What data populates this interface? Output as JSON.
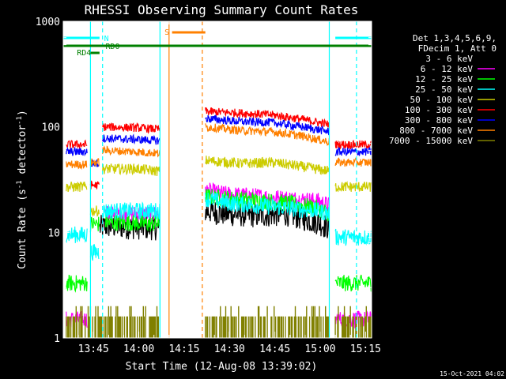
{
  "chart_data": {
    "type": "line",
    "title": "RHESSI Observing Summary Count Rates",
    "xlabel": "Start Time (12-Aug-08 13:39:02)",
    "ylabel_main": "Count Rate (s",
    "ylabel_sup1": "-1",
    "ylabel_mid": " detector",
    "ylabel_sup2": "-1",
    "ylabel_end": ")",
    "timestamp": "15-Oct-2021 04:02",
    "x_range_min": [
      -4,
      98
    ],
    "y_scale": "log",
    "y_range": [
      1,
      1000
    ],
    "x_ticks": [
      {
        "t": 6,
        "label": "13:45"
      },
      {
        "t": 21,
        "label": "14:00"
      },
      {
        "t": 36,
        "label": "14:15"
      },
      {
        "t": 51,
        "label": "14:30"
      },
      {
        "t": 66,
        "label": "14:45"
      },
      {
        "t": 81,
        "label": "15:00"
      },
      {
        "t": 96,
        "label": "15:15"
      }
    ],
    "y_ticks": [
      {
        "v": 1,
        "label": "1"
      },
      {
        "v": 10,
        "label": "10"
      },
      {
        "v": 100,
        "label": "100"
      },
      {
        "v": 1000,
        "label": "1000"
      }
    ],
    "legend": {
      "header1": "Det 1,3,4,5,6,9,",
      "header2": "FDecim 1, Att 0",
      "entries": [
        {
          "label": "3 - 6 keV",
          "color": "#000000"
        },
        {
          "label": "6 - 12 keV",
          "color": "#ff00ff"
        },
        {
          "label": "12 - 25 keV",
          "color": "#00ff00"
        },
        {
          "label": "25 - 50 keV",
          "color": "#00ffff"
        },
        {
          "label": "50 - 100 keV",
          "color": "#cccc00"
        },
        {
          "label": "100 - 300 keV",
          "color": "#ff0000"
        },
        {
          "label": "300 - 800 keV",
          "color": "#0000ff"
        },
        {
          "label": "800 - 7000 keV",
          "color": "#ff8000"
        },
        {
          "label": "7000 - 15000 keV",
          "color": "#808000"
        }
      ]
    },
    "flags": [
      {
        "label": "N",
        "color": "#00ffff",
        "segments": [
          [
            -4,
            8
          ],
          [
            86,
            98
          ]
        ]
      },
      {
        "label": "S",
        "color": "#ff8000",
        "segments": [
          [
            32,
            43
          ]
        ]
      },
      {
        "label": "RD0",
        "color": "#008000",
        "segments": [
          [
            -4,
            98
          ]
        ]
      },
      {
        "label": "RD4",
        "color": "#008000",
        "segments": [
          [
            5,
            8
          ]
        ]
      }
    ],
    "vlines": [
      {
        "t": 5,
        "color": "#00ffff",
        "style": "solid"
      },
      {
        "t": 9,
        "color": "#00ffff",
        "style": "dashed"
      },
      {
        "t": 28,
        "color": "#00ffff",
        "style": "solid"
      },
      {
        "t": 31,
        "color": "#ff8000",
        "style": "solid"
      },
      {
        "t": 42,
        "color": "#ff8000",
        "style": "dashed"
      },
      {
        "t": 84,
        "color": "#00ffff",
        "style": "solid"
      },
      {
        "t": 93,
        "color": "#00ffff",
        "style": "dashed"
      }
    ],
    "series": [
      {
        "name": "3 - 6 keV",
        "color": "#000000",
        "noise": 0.12,
        "segments": [
          {
            "x": [
              -3,
              4,
              6,
              8,
              10,
              28
            ],
            "y": [
              null,
              null,
              null,
              11,
              11.5,
              11
            ]
          },
          {
            "x": [
              43,
              50,
              60,
              70,
              80,
              84
            ],
            "y": [
              16,
              15,
              14.5,
              15,
              12.5,
              11
            ]
          }
        ]
      },
      {
        "name": "6 - 12 keV",
        "color": "#ff00ff",
        "noise": 0.08,
        "segments": [
          {
            "x": [
              -3,
              4
            ],
            "y": [
              1.5,
              1.5
            ]
          },
          {
            "x": [
              10,
              28
            ],
            "y": [
              15,
              15
            ]
          },
          {
            "x": [
              43,
              50,
              60,
              70,
              80,
              84
            ],
            "y": [
              25,
              23,
              22,
              21,
              20,
              18
            ]
          },
          {
            "x": [
              86,
              98
            ],
            "y": [
              1.5,
              1.5
            ]
          }
        ]
      },
      {
        "name": "12 - 25 keV",
        "color": "#00ff00",
        "noise": 0.08,
        "segments": [
          {
            "x": [
              -3,
              4
            ],
            "y": [
              3.3,
              3.3
            ]
          },
          {
            "x": [
              5,
              8
            ],
            "y": [
              12,
              12
            ]
          },
          {
            "x": [
              10,
              28
            ],
            "y": [
              12.5,
              12
            ]
          },
          {
            "x": [
              43,
              50,
              60,
              70,
              80,
              84
            ],
            "y": [
              22,
              21,
              20,
              19,
              17,
              15
            ]
          },
          {
            "x": [
              86,
              98
            ],
            "y": [
              3.3,
              3.3
            ]
          }
        ]
      },
      {
        "name": "25 - 50 keV",
        "color": "#00ffff",
        "noise": 0.08,
        "segments": [
          {
            "x": [
              -3,
              3,
              4
            ],
            "y": [
              9.5,
              9.5,
              9.5
            ]
          },
          {
            "x": [
              5,
              8
            ],
            "y": [
              6.5,
              6.5
            ]
          },
          {
            "x": [
              9,
              28
            ],
            "y": [
              16,
              16
            ]
          },
          {
            "x": [
              43,
              50,
              60,
              70,
              80,
              84
            ],
            "y": [
              21,
              19,
              18,
              17,
              16,
              15
            ]
          },
          {
            "x": [
              86,
              98
            ],
            "y": [
              9,
              9
            ]
          }
        ]
      },
      {
        "name": "50 - 100 keV",
        "color": "#cccc00",
        "noise": 0.05,
        "segments": [
          {
            "x": [
              -3,
              4
            ],
            "y": [
              27,
              27
            ]
          },
          {
            "x": [
              5,
              8
            ],
            "y": [
              16,
              16
            ]
          },
          {
            "x": [
              9,
              20,
              28
            ],
            "y": [
              40,
              40,
              38
            ]
          },
          {
            "x": [
              43,
              55,
              65,
              75,
              84
            ],
            "y": [
              48,
              45,
              46,
              42,
              38
            ]
          },
          {
            "x": [
              86,
              98
            ],
            "y": [
              27,
              27
            ]
          }
        ]
      },
      {
        "name": "100 - 300 keV",
        "color": "#ff0000",
        "noise": 0.04,
        "segments": [
          {
            "x": [
              -3,
              4
            ],
            "y": [
              68,
              68
            ]
          },
          {
            "x": [
              5,
              8
            ],
            "y": [
              28,
              28
            ]
          },
          {
            "x": [
              9,
              20,
              28
            ],
            "y": [
              100,
              98,
              95
            ]
          },
          {
            "x": [
              43,
              55,
              65,
              75,
              84
            ],
            "y": [
              140,
              135,
              130,
              118,
              105
            ]
          },
          {
            "x": [
              86,
              98
            ],
            "y": [
              68,
              68
            ]
          }
        ]
      },
      {
        "name": "300 - 800 keV",
        "color": "#0000ff",
        "noise": 0.04,
        "segments": [
          {
            "x": [
              -3,
              4
            ],
            "y": [
              58,
              58
            ]
          },
          {
            "x": [
              5,
              8
            ],
            "y": [
              45,
              45
            ]
          },
          {
            "x": [
              9,
              20,
              28
            ],
            "y": [
              78,
              76,
              74
            ]
          },
          {
            "x": [
              43,
              55,
              65,
              75,
              84
            ],
            "y": [
              120,
              112,
              110,
              100,
              90
            ]
          },
          {
            "x": [
              86,
              98
            ],
            "y": [
              58,
              58
            ]
          }
        ]
      },
      {
        "name": "800 - 7000 keV",
        "color": "#ff8000",
        "noise": 0.04,
        "segments": [
          {
            "x": [
              -3,
              4
            ],
            "y": [
              44,
              44
            ]
          },
          {
            "x": [
              5,
              8
            ],
            "y": [
              46,
              46
            ]
          },
          {
            "x": [
              9,
              20,
              28
            ],
            "y": [
              60,
              58,
              56
            ]
          },
          {
            "x": [
              43,
              55,
              65,
              75,
              84
            ],
            "y": [
              100,
              92,
              90,
              82,
              72
            ]
          },
          {
            "x": [
              86,
              98
            ],
            "y": [
              46,
              46
            ]
          }
        ]
      },
      {
        "name": "7000 - 15000 keV",
        "color": "#808000",
        "noise": 0.0,
        "segments": [
          {
            "x": [
              -3,
              28
            ],
            "y": [
              1.6,
              1.6
            ]
          },
          {
            "x": [
              43,
              84
            ],
            "y": [
              1.6,
              1.6
            ]
          },
          {
            "x": [
              86,
              98
            ],
            "y": [
              1.6,
              1.6
            ]
          }
        ]
      }
    ]
  }
}
